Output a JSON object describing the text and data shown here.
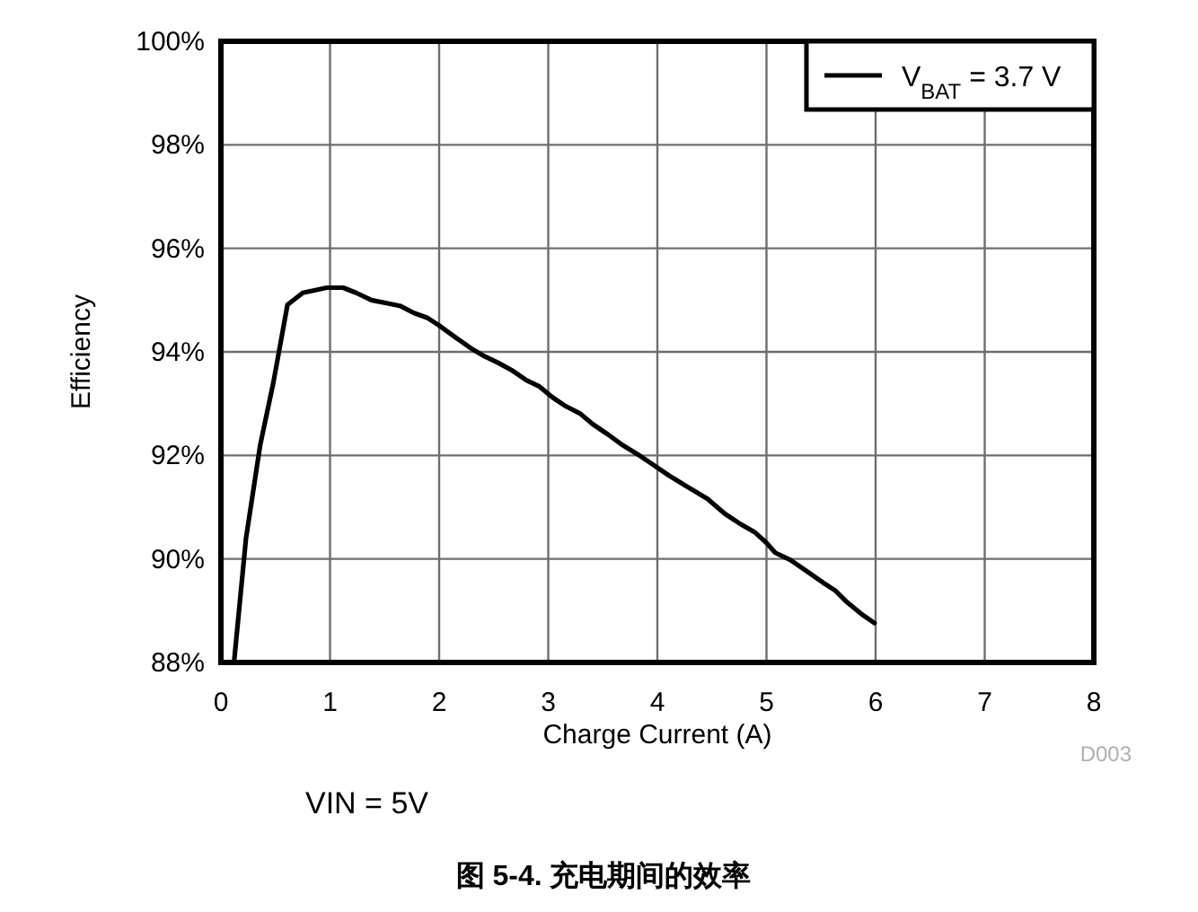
{
  "chart_data": {
    "type": "line",
    "xlabel": "Charge Current (A)",
    "ylabel": "Efficiency",
    "annotations": [
      "D003",
      "VIN = 5V",
      "图 5-4. 充电期间的效率"
    ],
    "xlim": [
      0,
      8
    ],
    "xticks": [
      0,
      1,
      2,
      3,
      4,
      5,
      6,
      7,
      8
    ],
    "ylim": [
      88,
      100
    ],
    "yticks": [
      {
        "value": 88,
        "label": "88%"
      },
      {
        "value": 90,
        "label": "90%"
      },
      {
        "value": 92,
        "label": "92%"
      },
      {
        "value": 94,
        "label": "94%"
      },
      {
        "value": 96,
        "label": "96%"
      },
      {
        "value": 98,
        "label": "98%"
      },
      {
        "value": 100,
        "label": "100%"
      }
    ],
    "grid": true,
    "legend": "top right",
    "series": [
      {
        "name": "V$_{BAT}$ = 3.7 V",
        "color": "#000000",
        "x": [
          0.12,
          0.23,
          0.36,
          0.48,
          0.61,
          0.75,
          0.97,
          1.12,
          1.24,
          1.38,
          1.52,
          1.64,
          1.77,
          1.89,
          2.0,
          2.15,
          2.29,
          2.42,
          2.54,
          2.67,
          2.8,
          2.92,
          3.04,
          3.16,
          3.29,
          3.41,
          3.55,
          3.68,
          3.82,
          3.96,
          4.1,
          4.23,
          4.46,
          4.62,
          4.75,
          4.89,
          5.0,
          5.08,
          5.22,
          5.39,
          5.52,
          5.63,
          5.74,
          5.88,
          5.99
        ],
        "values": [
          88.0,
          90.4,
          92.2,
          93.4,
          94.91,
          95.14,
          95.24,
          95.24,
          95.14,
          95.0,
          94.94,
          94.89,
          94.75,
          94.66,
          94.51,
          94.28,
          94.07,
          93.91,
          93.79,
          93.64,
          93.45,
          93.33,
          93.12,
          92.95,
          92.81,
          92.6,
          92.4,
          92.2,
          92.02,
          91.82,
          91.62,
          91.45,
          91.16,
          90.87,
          90.69,
          90.52,
          90.31,
          90.12,
          89.98,
          89.73,
          89.54,
          89.39,
          89.16,
          88.92,
          88.76
        ]
      }
    ]
  }
}
